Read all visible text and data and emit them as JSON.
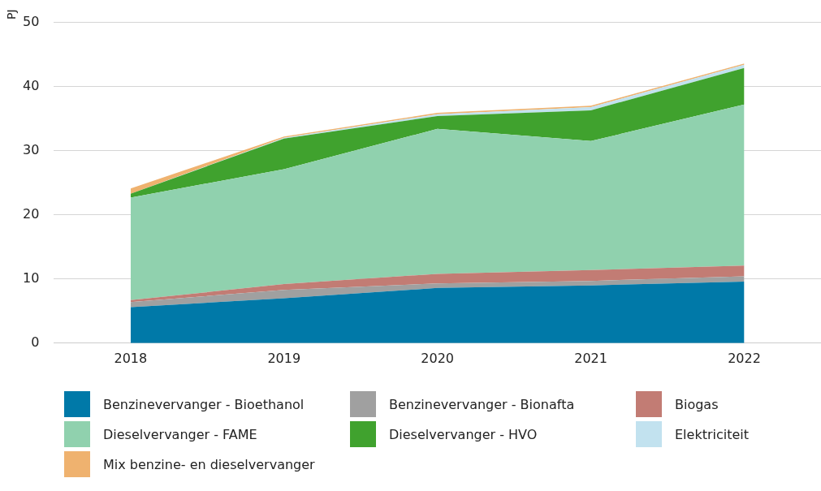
{
  "chart_data": {
    "type": "area",
    "stacked": true,
    "ylabel": "PJ",
    "categories": [
      "2018",
      "2019",
      "2020",
      "2021",
      "2022"
    ],
    "series": [
      {
        "name": "Benzinevervanger - Bioethanol",
        "color": "#0079a8",
        "values": [
          5.6,
          7.0,
          8.6,
          9.0,
          9.6
        ]
      },
      {
        "name": "Benzinevervanger - Bionafta",
        "color": "#a0a0a0",
        "values": [
          0.8,
          1.3,
          0.7,
          0.7,
          0.8
        ]
      },
      {
        "name": "Biogas",
        "color": "#c27c74",
        "values": [
          0.3,
          0.9,
          1.5,
          1.7,
          1.7
        ]
      },
      {
        "name": "Dieselvervanger - FAME",
        "color": "#90d1ae",
        "values": [
          16.0,
          17.9,
          22.6,
          20.1,
          25.1
        ]
      },
      {
        "name": "Dieselvervanger - HVO",
        "color": "#40a22e",
        "values": [
          0.6,
          4.8,
          2.0,
          4.8,
          5.7
        ]
      },
      {
        "name": "Elektriciteit",
        "color": "#c2e2ef",
        "values": [
          0.0,
          0.1,
          0.3,
          0.5,
          0.5
        ]
      },
      {
        "name": "Mix benzine- en dieselvervanger",
        "color": "#efb26f",
        "values": [
          0.8,
          0.2,
          0.2,
          0.2,
          0.2
        ]
      }
    ],
    "ylim": [
      0,
      50
    ],
    "yticks": [
      0,
      10,
      20,
      30,
      40,
      50
    ],
    "grid": "y",
    "legend": "bottom"
  }
}
